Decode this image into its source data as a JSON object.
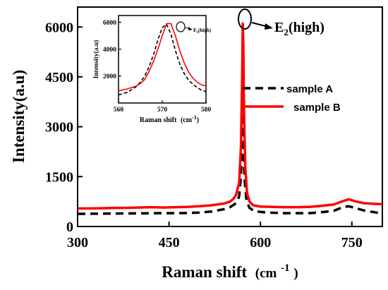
{
  "chart_data": [
    {
      "type": "line",
      "xlabel": "Raman shift",
      "xlabel_unit_base": "(cm",
      "xlabel_unit_exp": "-1",
      "xlabel_unit_close": ")",
      "ylabel": "Intensity(a.u)",
      "xlim": [
        300,
        800
      ],
      "ylim": [
        0,
        6600
      ],
      "xticks": [
        300,
        450,
        600,
        750
      ],
      "yticks": [
        0,
        1500,
        3000,
        4500,
        6000
      ],
      "legend": "center-right",
      "grid": false,
      "annotation": {
        "base": "E",
        "sub": "2",
        "rest": "(high)",
        "x": 570,
        "y": 6100
      },
      "series": [
        {
          "name": "sample A",
          "color": "#000000",
          "style": "dashed",
          "points": [
            [
              300,
              380
            ],
            [
              330,
              385
            ],
            [
              360,
              390
            ],
            [
              400,
              395
            ],
            [
              430,
              400
            ],
            [
              460,
              400
            ],
            [
              480,
              405
            ],
            [
              500,
              420
            ],
            [
              520,
              450
            ],
            [
              540,
              520
            ],
            [
              550,
              580
            ],
            [
              560,
              700
            ],
            [
              565,
              900
            ],
            [
              568,
              1500
            ],
            [
              570,
              2800
            ],
            [
              571,
              3600
            ],
            [
              572,
              2600
            ],
            [
              574,
              1400
            ],
            [
              577,
              800
            ],
            [
              582,
              560
            ],
            [
              590,
              460
            ],
            [
              610,
              420
            ],
            [
              640,
              400
            ],
            [
              680,
              400
            ],
            [
              700,
              430
            ],
            [
              720,
              470
            ],
            [
              735,
              580
            ],
            [
              745,
              610
            ],
            [
              755,
              560
            ],
            [
              770,
              480
            ],
            [
              790,
              420
            ],
            [
              800,
              400
            ]
          ]
        },
        {
          "name": "sample B",
          "color": "#ff0000",
          "style": "solid",
          "points": [
            [
              300,
              540
            ],
            [
              320,
              545
            ],
            [
              340,
              550
            ],
            [
              360,
              560
            ],
            [
              380,
              560
            ],
            [
              400,
              570
            ],
            [
              420,
              580
            ],
            [
              440,
              570
            ],
            [
              460,
              580
            ],
            [
              480,
              590
            ],
            [
              500,
              610
            ],
            [
              520,
              640
            ],
            [
              540,
              690
            ],
            [
              550,
              750
            ],
            [
              555,
              820
            ],
            [
              560,
              950
            ],
            [
              565,
              1300
            ],
            [
              568,
              2400
            ],
            [
              570,
              4500
            ],
            [
              571,
              6100
            ],
            [
              572,
              5400
            ],
            [
              573,
              3500
            ],
            [
              575,
              1800
            ],
            [
              578,
              1000
            ],
            [
              582,
              750
            ],
            [
              588,
              640
            ],
            [
              600,
              600
            ],
            [
              620,
              590
            ],
            [
              640,
              580
            ],
            [
              660,
              580
            ],
            [
              680,
              590
            ],
            [
              700,
              620
            ],
            [
              720,
              660
            ],
            [
              735,
              760
            ],
            [
              745,
              820
            ],
            [
              755,
              760
            ],
            [
              770,
              700
            ],
            [
              790,
              680
            ],
            [
              800,
              670
            ]
          ]
        }
      ]
    },
    {
      "type": "line",
      "xlabel": "Raman shift",
      "xlabel_unit_base": "(cm",
      "xlabel_unit_exp": "-1",
      "xlabel_unit_close": ")",
      "ylabel": "Intensity(a.u)",
      "xlim": [
        560,
        580
      ],
      "ylim": [
        0,
        6500
      ],
      "xticks": [
        560,
        570,
        580
      ],
      "yticks": [
        2000,
        4000,
        6000
      ],
      "annotation": {
        "base": "E",
        "sub": "2",
        "rest": "(high)",
        "x": 571,
        "y": 6000
      },
      "series": [
        {
          "name": "sample A",
          "color": "#000000",
          "style": "dashed",
          "points": [
            [
              560,
              600
            ],
            [
              562,
              800
            ],
            [
              564,
              1200
            ],
            [
              565,
              1550
            ],
            [
              566,
              2000
            ],
            [
              567,
              2700
            ],
            [
              568,
              3600
            ],
            [
              569,
              4700
            ],
            [
              570,
              5600
            ],
            [
              571,
              5850
            ],
            [
              572,
              5100
            ],
            [
              573,
              3900
            ],
            [
              574,
              2900
            ],
            [
              575,
              2200
            ],
            [
              576,
              1700
            ],
            [
              577,
              1400
            ],
            [
              578,
              1150
            ],
            [
              579,
              950
            ],
            [
              580,
              850
            ]
          ]
        },
        {
          "name": "sample B",
          "color": "#ff0000",
          "style": "solid",
          "points": [
            [
              560,
              900
            ],
            [
              562,
              1050
            ],
            [
              564,
              1250
            ],
            [
              565,
              1450
            ],
            [
              566,
              1750
            ],
            [
              567,
              2350
            ],
            [
              568,
              3100
            ],
            [
              569,
              4000
            ],
            [
              570,
              5000
            ],
            [
              571,
              5900
            ],
            [
              572,
              5900
            ],
            [
              573,
              5000
            ],
            [
              574,
              3900
            ],
            [
              575,
              3000
            ],
            [
              576,
              2300
            ],
            [
              577,
              1850
            ],
            [
              578,
              1550
            ],
            [
              579,
              1350
            ],
            [
              580,
              1250
            ]
          ]
        }
      ]
    }
  ]
}
